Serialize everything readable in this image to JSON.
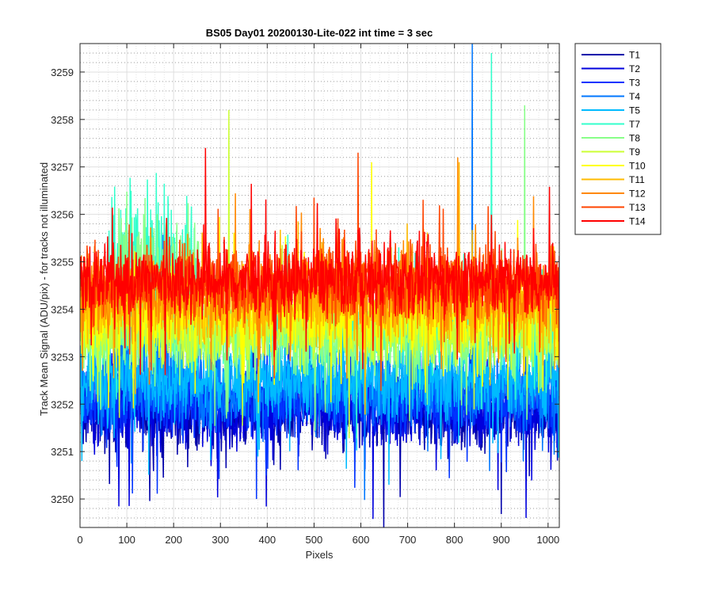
{
  "chart_data": {
    "type": "line",
    "title": "BS05 Day01 20200130-Lite-022 int time = 3 sec",
    "xlabel": "Pixels",
    "ylabel": "Track Mean Signal (ADU/pix) - for tracks not illuminated",
    "xlim": [
      0,
      1024
    ],
    "ylim": [
      3249.4,
      3259.6
    ],
    "xticks": [
      0,
      100,
      200,
      300,
      400,
      500,
      600,
      700,
      800,
      900,
      1000
    ],
    "yticks": [
      3250,
      3251,
      3252,
      3253,
      3254,
      3255,
      3256,
      3257,
      3258,
      3259
    ],
    "grid": "major and minor",
    "legend_position": "outside top-right",
    "series": [
      {
        "name": "T1",
        "color": "#0000aa",
        "mean": 3251.8,
        "noise": 0.55,
        "spike_min": 3249.4
      },
      {
        "name": "T2",
        "color": "#0000dd",
        "mean": 3251.9,
        "noise": 0.55,
        "spike_min": 3249.6
      },
      {
        "name": "T3",
        "color": "#0033ff",
        "mean": 3252.1,
        "noise": 0.55,
        "spike_min": 3250.0
      },
      {
        "name": "T4",
        "color": "#0077ff",
        "mean": 3252.3,
        "noise": 0.55,
        "spike_max": 3259.6
      },
      {
        "name": "T5",
        "color": "#00bbff",
        "mean": 3252.5,
        "noise": 0.55,
        "spike_min": 3250.3
      },
      {
        "name": "T7",
        "color": "#33ffcc",
        "mean": 3253.6,
        "noise": 0.55,
        "spike_max": 3259.4
      },
      {
        "name": "T8",
        "color": "#88ff88",
        "mean": 3253.3,
        "noise": 0.55,
        "spike_max": 3258.3
      },
      {
        "name": "T9",
        "color": "#ccff33",
        "mean": 3253.6,
        "noise": 0.55,
        "spike_max": 3258.2
      },
      {
        "name": "T10",
        "color": "#ffff00",
        "mean": 3253.9,
        "noise": 0.55,
        "spike_max": 3257.1
      },
      {
        "name": "T11",
        "color": "#ffbb00",
        "mean": 3254.1,
        "noise": 0.55,
        "spike_max": 3257.1
      },
      {
        "name": "T12",
        "color": "#ff8800",
        "mean": 3254.4,
        "noise": 0.55,
        "spike_max": 3257.2
      },
      {
        "name": "T13",
        "color": "#ff4400",
        "mean": 3254.6,
        "noise": 0.55,
        "spike_max": 3257.3
      },
      {
        "name": "T14",
        "color": "#ff0000",
        "mean": 3254.6,
        "noise": 0.55,
        "spike_max": 3257.4
      }
    ]
  }
}
